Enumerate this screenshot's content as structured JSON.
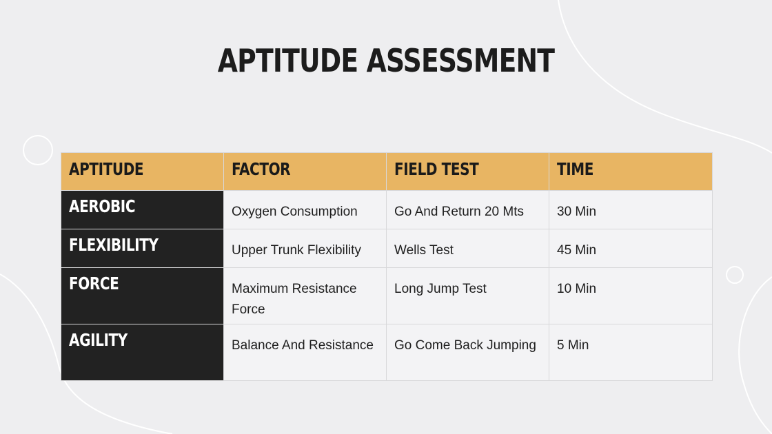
{
  "slide": {
    "title": "APTITUDE ASSESSMENT"
  },
  "table": {
    "headers": [
      "APTITUDE",
      "FACTOR",
      "FIELD TEST",
      "TIME"
    ],
    "rows": [
      {
        "aptitude": "AEROBIC",
        "factor": "Oxygen Consumption",
        "field_test": "Go And Return 20 Mts",
        "time": "30 Min"
      },
      {
        "aptitude": "FLEXIBILITY",
        "factor": "Upper Trunk Flexibility",
        "field_test": "Wells Test",
        "time": "45 Min"
      },
      {
        "aptitude": "FORCE",
        "factor": "Maximum Resistance Force",
        "field_test": "Long Jump Test",
        "time": "10 Min"
      },
      {
        "aptitude": "AGILITY",
        "factor": "Balance And Resistance",
        "field_test": "Go Come Back Jumping",
        "time": "5 Min"
      }
    ]
  },
  "colors": {
    "background": "#eeeef0",
    "header_accent": "#e8b563",
    "label_dark": "#222222",
    "cell_light": "#f3f3f5"
  }
}
